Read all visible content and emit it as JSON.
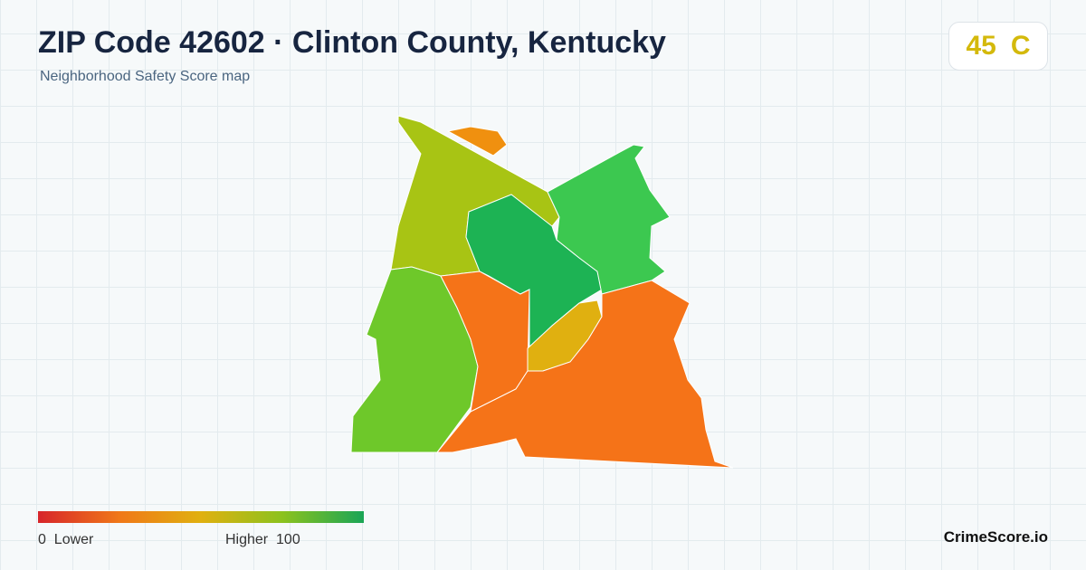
{
  "header": {
    "title": "ZIP Code 42602 · Clinton County, Kentucky",
    "subtitle": "Neighborhood Safety Score map"
  },
  "score": {
    "value": 45,
    "grade": "C"
  },
  "legend": {
    "min": 0,
    "min_label": "Lower",
    "max_label": "Higher",
    "max": 100
  },
  "brand": "CrimeScore.io"
}
